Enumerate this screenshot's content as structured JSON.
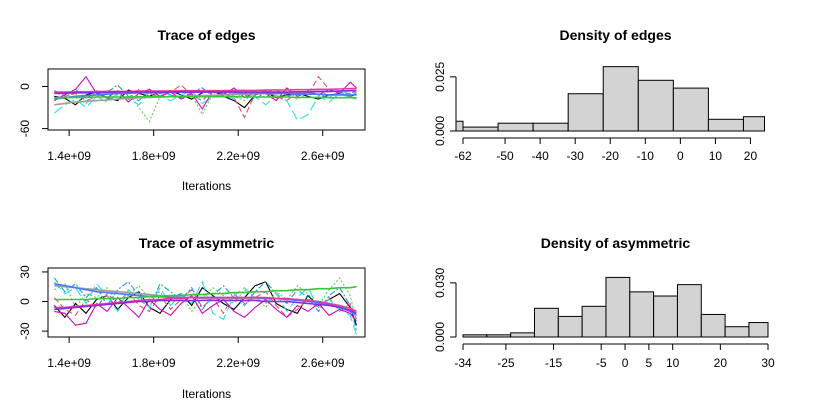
{
  "chart_data": [
    {
      "type": "line",
      "title": "Trace of edges",
      "xlabel": "Iterations",
      "ylabel": "",
      "x_ticks": [
        "1.4e+09",
        "1.8e+09",
        "2.2e+09",
        "2.6e+09"
      ],
      "x_tick_values": [
        1400000000.0,
        1800000000.0,
        2200000000.0,
        2600000000.0
      ],
      "y_ticks": [
        "-60",
        "0"
      ],
      "y_tick_values": [
        -60,
        0
      ],
      "xlim": [
        1300000000.0,
        2800000000.0
      ],
      "ylim": [
        -62,
        25
      ],
      "x": [
        1330000000.0,
        1380000000.0,
        1430000000.0,
        1480000000.0,
        1530000000.0,
        1580000000.0,
        1630000000.0,
        1680000000.0,
        1730000000.0,
        1780000000.0,
        1830000000.0,
        1880000000.0,
        1930000000.0,
        1980000000.0,
        2030000000.0,
        2080000000.0,
        2130000000.0,
        2180000000.0,
        2230000000.0,
        2280000000.0,
        2330000000.0,
        2380000000.0,
        2430000000.0,
        2480000000.0,
        2530000000.0,
        2580000000.0,
        2630000000.0,
        2680000000.0,
        2730000000.0,
        2760000000.0
      ],
      "series": [
        {
          "color": "#000000",
          "dash": "",
          "values": [
            -14,
            -17,
            -26,
            -12,
            -8,
            -16,
            -20,
            -5,
            -10,
            -14,
            -8,
            -6,
            -12,
            -18,
            -9,
            -6,
            -14,
            -20,
            -30,
            -12,
            -8,
            -16,
            -12,
            -9,
            -14,
            -18,
            -12,
            -10,
            -14,
            -11
          ]
        },
        {
          "color": "#df536b",
          "dash": "6,3",
          "values": [
            -8,
            -14,
            -10,
            -20,
            -15,
            -6,
            -12,
            -18,
            -4,
            -10,
            -16,
            -8,
            2,
            -12,
            -20,
            -6,
            -10,
            -16,
            -44,
            -10,
            -6,
            -14,
            -20,
            -8,
            -12,
            14,
            -4,
            -10,
            -14,
            -8
          ]
        },
        {
          "color": "#61d04f",
          "dash": "2,2",
          "values": [
            -20,
            -10,
            -16,
            -24,
            -6,
            -18,
            -12,
            -8,
            -30,
            -50,
            -14,
            -6,
            -18,
            -12,
            -40,
            -10,
            -6,
            -14,
            -20,
            -8,
            -16,
            -6,
            -12,
            -18,
            -10,
            -4,
            -14,
            -8,
            -12,
            -6
          ]
        },
        {
          "color": "#2297e6",
          "dash": "6,2,2,2",
          "values": [
            -6,
            -12,
            -4,
            -16,
            -10,
            -8,
            2,
            -14,
            -20,
            -6,
            -10,
            -12,
            -16,
            -8,
            -2,
            -14,
            -10,
            -6,
            -12,
            -18,
            -8,
            -4,
            -14,
            -10,
            -6,
            -12,
            -16,
            -8,
            -10,
            -6
          ]
        },
        {
          "color": "#28e2e5",
          "dash": "10,4",
          "values": [
            -38,
            -26,
            -18,
            -30,
            -14,
            -22,
            -10,
            -18,
            -26,
            -8,
            -14,
            -20,
            -12,
            -6,
            -24,
            -16,
            -10,
            -18,
            -8,
            -14,
            -26,
            -12,
            -20,
            -48,
            -40,
            -14,
            -22,
            -10,
            -16,
            -18
          ]
        },
        {
          "color": "#cd0bbc",
          "dash": "",
          "values": [
            -20,
            -12,
            -4,
            14,
            -10,
            -16,
            -6,
            -22,
            -10,
            -4,
            -14,
            -8,
            -18,
            -10,
            -32,
            -6,
            -12,
            -2,
            -16,
            -8,
            -10,
            -20,
            -2,
            -14,
            -8,
            -12,
            -4,
            -10,
            6,
            -2
          ]
        },
        {
          "color": "#9e9e9e",
          "dash": "",
          "values": [
            -26,
            -24,
            -22,
            -21,
            -20,
            -19,
            -18,
            -17,
            -16,
            -15.5,
            -15,
            -14.5,
            -14,
            -13.5,
            -13,
            -12.5,
            -12,
            -11.5,
            -11,
            -10.5,
            -10,
            -9.5,
            -9,
            -8.5,
            -8,
            -7.5,
            -7,
            -6.5,
            -6,
            -5.8
          ]
        },
        {
          "color": "#4e79ff",
          "dash": "",
          "values": [
            -18,
            -16,
            -14,
            -13,
            -12,
            -11,
            -10,
            -10,
            -9,
            -9,
            -9,
            -8,
            -8,
            -8,
            -8,
            -8,
            -8,
            -9,
            -9,
            -9,
            -10,
            -10,
            -10,
            -11,
            -11,
            -11,
            -12,
            -12,
            -12,
            -12
          ]
        },
        {
          "color": "#39c639",
          "dash": "",
          "values": [
            -16,
            -16,
            -15.5,
            -15.5,
            -15,
            -15,
            -15,
            -15,
            -14.5,
            -14.5,
            -14.5,
            -14.5,
            -14.5,
            -14.5,
            -14.5,
            -14.5,
            -14.5,
            -14.5,
            -15,
            -15,
            -15,
            -15,
            -15,
            -15.5,
            -15.5,
            -15.5,
            -16,
            -16,
            -16,
            -16
          ]
        },
        {
          "color": "#e83a9b",
          "dash": "",
          "values": [
            -8,
            -8,
            -7.5,
            -7.5,
            -7,
            -7,
            -7,
            -7,
            -6.5,
            -6.5,
            -6.5,
            -6.5,
            -6,
            -6,
            -6,
            -6,
            -6,
            -5.5,
            -5.5,
            -5.5,
            -5,
            -5,
            -5,
            -4.5,
            -4.5,
            -4,
            -4,
            -3.5,
            -3,
            -3
          ]
        },
        {
          "color": "#8a2be2",
          "dash": "",
          "values": [
            -10,
            -9.5,
            -9,
            -9,
            -8.5,
            -8.5,
            -8,
            -8,
            -8,
            -8,
            -8,
            -8,
            -8,
            -8,
            -8,
            -8,
            -8,
            -8,
            -8,
            -8,
            -8,
            -8,
            -8,
            -7.5,
            -7.5,
            -7,
            -7,
            -6.5,
            -6,
            -6
          ]
        }
      ]
    },
    {
      "type": "bar",
      "title": "Density of edges",
      "xlabel": "",
      "ylabel": "",
      "x_ticks": [
        "-62",
        "-50",
        "-40",
        "-30",
        "-20",
        "-10",
        "0",
        "10",
        "20"
      ],
      "x_tick_values": [
        -62,
        -50,
        -40,
        -30,
        -20,
        -10,
        0,
        10,
        20
      ],
      "y_ticks": [
        "0.000",
        "0.025"
      ],
      "y_tick_values": [
        0,
        0.025
      ],
      "xlim": [
        -62,
        25
      ],
      "ylim": [
        0,
        0.03
      ],
      "bins": [
        [
          -64,
          -62
        ],
        [
          -62,
          -52
        ],
        [
          -52,
          -42
        ],
        [
          -42,
          -32
        ],
        [
          -32,
          -22
        ],
        [
          -22,
          -12
        ],
        [
          -12,
          -2
        ],
        [
          -2,
          8
        ],
        [
          8,
          18
        ],
        [
          18,
          24
        ]
      ],
      "values": [
        0.0045,
        0.0018,
        0.0036,
        0.0036,
        0.0172,
        0.0297,
        0.0234,
        0.0198,
        0.0054,
        0.0066
      ]
    },
    {
      "type": "line",
      "title": "Trace of asymmetric",
      "xlabel": "Iterations",
      "ylabel": "",
      "x_ticks": [
        "1.4e+09",
        "1.8e+09",
        "2.2e+09",
        "2.6e+09"
      ],
      "x_tick_values": [
        1400000000.0,
        1800000000.0,
        2200000000.0,
        2600000000.0
      ],
      "y_ticks": [
        "-30",
        "0",
        "30"
      ],
      "y_tick_values": [
        -30,
        0,
        30
      ],
      "xlim": [
        1300000000.0,
        2800000000.0
      ],
      "ylim": [
        -36,
        34
      ],
      "x": [
        1330000000.0,
        1380000000.0,
        1430000000.0,
        1480000000.0,
        1530000000.0,
        1580000000.0,
        1630000000.0,
        1680000000.0,
        1730000000.0,
        1780000000.0,
        1830000000.0,
        1880000000.0,
        1930000000.0,
        1980000000.0,
        2030000000.0,
        2080000000.0,
        2130000000.0,
        2180000000.0,
        2230000000.0,
        2280000000.0,
        2330000000.0,
        2380000000.0,
        2430000000.0,
        2480000000.0,
        2530000000.0,
        2580000000.0,
        2630000000.0,
        2680000000.0,
        2730000000.0,
        2760000000.0
      ],
      "series": [
        {
          "color": "#000000",
          "dash": "",
          "values": [
            -4,
            -16,
            -2,
            -12,
            2,
            6,
            -8,
            4,
            10,
            -6,
            -12,
            2,
            8,
            -4,
            14,
            6,
            -2,
            -8,
            4,
            16,
            20,
            -2,
            -8,
            -12,
            6,
            -4,
            2,
            8,
            -6,
            -24
          ]
        },
        {
          "color": "#df536b",
          "dash": "6,3",
          "values": [
            4,
            -8,
            -14,
            2,
            -6,
            8,
            -2,
            10,
            -4,
            -10,
            6,
            -8,
            2,
            12,
            -6,
            4,
            -12,
            8,
            -2,
            4,
            10,
            -4,
            -16,
            -8,
            2,
            -6,
            4,
            -10,
            -2,
            -18
          ]
        },
        {
          "color": "#61d04f",
          "dash": "2,2",
          "values": [
            12,
            18,
            -6,
            8,
            4,
            14,
            -2,
            6,
            16,
            2,
            10,
            -4,
            8,
            -10,
            4,
            14,
            6,
            -2,
            12,
            4,
            -6,
            10,
            2,
            16,
            8,
            -4,
            12,
            24,
            6,
            -20
          ]
        },
        {
          "color": "#2297e6",
          "dash": "6,2,2,2",
          "values": [
            24,
            10,
            18,
            4,
            14,
            -4,
            12,
            20,
            6,
            -6,
            18,
            10,
            2,
            14,
            -8,
            6,
            16,
            4,
            -4,
            10,
            20,
            8,
            -2,
            12,
            4,
            -10,
            6,
            14,
            -4,
            -30
          ]
        },
        {
          "color": "#28e2e5",
          "dash": "10,4",
          "values": [
            20,
            8,
            14,
            -2,
            18,
            6,
            -10,
            12,
            2,
            -6,
            14,
            -4,
            8,
            -2,
            20,
            -12,
            -18,
            6,
            14,
            4,
            -2,
            8,
            -10,
            4,
            14,
            -6,
            2,
            -8,
            -14,
            -34
          ]
        },
        {
          "color": "#cd0bbc",
          "dash": "",
          "values": [
            -10,
            -12,
            -24,
            -22,
            -2,
            -10,
            4,
            -6,
            -16,
            2,
            -8,
            -14,
            -2,
            6,
            -12,
            -4,
            2,
            -10,
            -16,
            -6,
            2,
            -8,
            -16,
            -4,
            -10,
            -2,
            -14,
            -8,
            -12,
            -20
          ]
        },
        {
          "color": "#9e9e9e",
          "dash": "",
          "values": [
            16,
            15,
            14,
            13,
            12,
            11,
            10,
            9,
            8,
            7,
            6,
            5,
            4,
            4,
            3,
            3,
            3,
            3,
            3,
            3,
            3,
            3,
            2,
            2,
            1,
            0,
            -2,
            -5,
            -9,
            -14
          ]
        },
        {
          "color": "#4e79ff",
          "dash": "",
          "values": [
            18,
            16,
            14,
            12,
            10,
            9,
            8,
            7,
            6,
            5,
            5,
            4,
            4,
            4,
            4,
            4,
            4,
            4,
            4,
            4,
            3,
            3,
            2,
            1,
            0,
            -1,
            -3,
            -6,
            -10,
            -14
          ]
        },
        {
          "color": "#39c639",
          "dash": "",
          "values": [
            2,
            2,
            2,
            2,
            3,
            3,
            3,
            4,
            4,
            5,
            5,
            6,
            6,
            7,
            7,
            8,
            8,
            9,
            9,
            10,
            10,
            11,
            11,
            12,
            12,
            13,
            13,
            14,
            14,
            15
          ]
        },
        {
          "color": "#e83a9b",
          "dash": "",
          "values": [
            -6,
            -6,
            -5,
            -4,
            -3,
            -2,
            -1,
            0,
            1,
            2,
            2,
            3,
            3,
            4,
            4,
            4,
            4,
            4,
            4,
            4,
            4,
            3,
            3,
            2,
            1,
            0,
            -2,
            -4,
            -7,
            -10
          ]
        },
        {
          "color": "#8a2be2",
          "dash": "",
          "values": [
            -8,
            -7,
            -6,
            -5,
            -4,
            -3,
            -2,
            -1,
            0,
            0,
            1,
            1,
            1,
            1,
            1,
            1,
            1,
            1,
            1,
            1,
            0,
            0,
            0,
            -1,
            -2,
            -3,
            -4,
            -6,
            -9,
            -12
          ]
        }
      ]
    },
    {
      "type": "bar",
      "title": "Density of asymmetric",
      "xlabel": "",
      "ylabel": "",
      "x_ticks": [
        "-34",
        "-25",
        "-15",
        "-5",
        "0",
        "5",
        "10",
        "20",
        "30"
      ],
      "x_tick_values": [
        -34,
        -25,
        -15,
        -5,
        0,
        5,
        10,
        20,
        30
      ],
      "y_ticks": [
        "0.000",
        "0.030"
      ],
      "y_tick_values": [
        0,
        0.03
      ],
      "xlim": [
        -34,
        30
      ],
      "ylim": [
        0,
        0.036
      ],
      "bins": [
        [
          -34,
          -29
        ],
        [
          -29,
          -24
        ],
        [
          -24,
          -19
        ],
        [
          -19,
          -14
        ],
        [
          -14,
          -9
        ],
        [
          -9,
          -4
        ],
        [
          -4,
          1
        ],
        [
          1,
          6
        ],
        [
          6,
          11
        ],
        [
          11,
          16
        ],
        [
          16,
          21
        ],
        [
          21,
          26
        ],
        [
          26,
          30
        ]
      ],
      "values": [
        0.0012,
        0.0012,
        0.0023,
        0.0159,
        0.0114,
        0.017,
        0.033,
        0.025,
        0.0227,
        0.029,
        0.0125,
        0.0057,
        0.008
      ]
    }
  ]
}
